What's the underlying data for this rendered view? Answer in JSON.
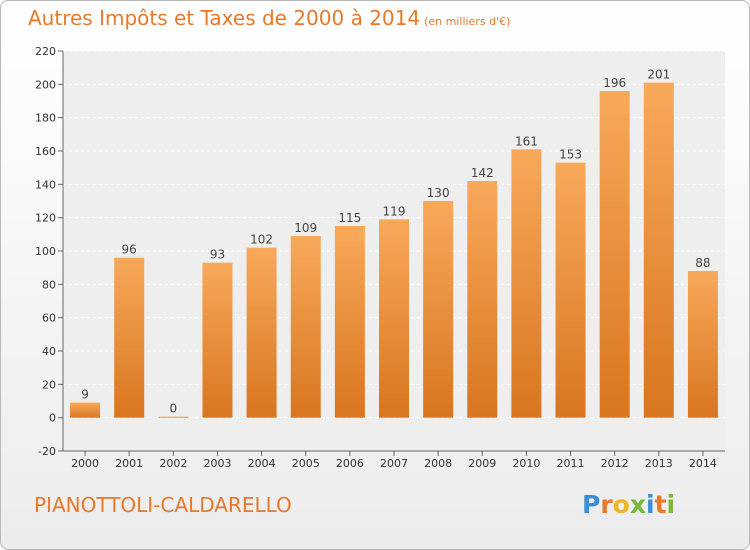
{
  "title": "Autres Impôts et Taxes de 2000 à 2014",
  "subtitle": "(en milliers d'€)",
  "commune": "PIANOTTOLI-CALDARELLO",
  "logo": {
    "letters": [
      "P",
      "r",
      "o",
      "x",
      "i",
      "t",
      "i"
    ],
    "colors": [
      "#3a8fd6",
      "#e8792b",
      "#f0b429",
      "#7ab83a",
      "#3a8fd6",
      "#e8792b",
      "#7ab83a"
    ]
  },
  "colors": {
    "bar_top": "#f7a95a",
    "bar_bottom": "#d9751f",
    "accent": "#e8792b"
  },
  "chart_data": {
    "type": "bar",
    "categories": [
      "2000",
      "2001",
      "2002",
      "2003",
      "2004",
      "2005",
      "2006",
      "2007",
      "2008",
      "2009",
      "2010",
      "2011",
      "2012",
      "2013",
      "2014"
    ],
    "values": [
      9,
      96,
      0,
      93,
      102,
      109,
      115,
      119,
      130,
      142,
      161,
      153,
      196,
      201,
      88
    ],
    "ylim": [
      -20,
      220
    ],
    "yticks": [
      -20,
      0,
      20,
      40,
      60,
      80,
      100,
      120,
      140,
      160,
      180,
      200,
      220
    ],
    "grid": true
  }
}
